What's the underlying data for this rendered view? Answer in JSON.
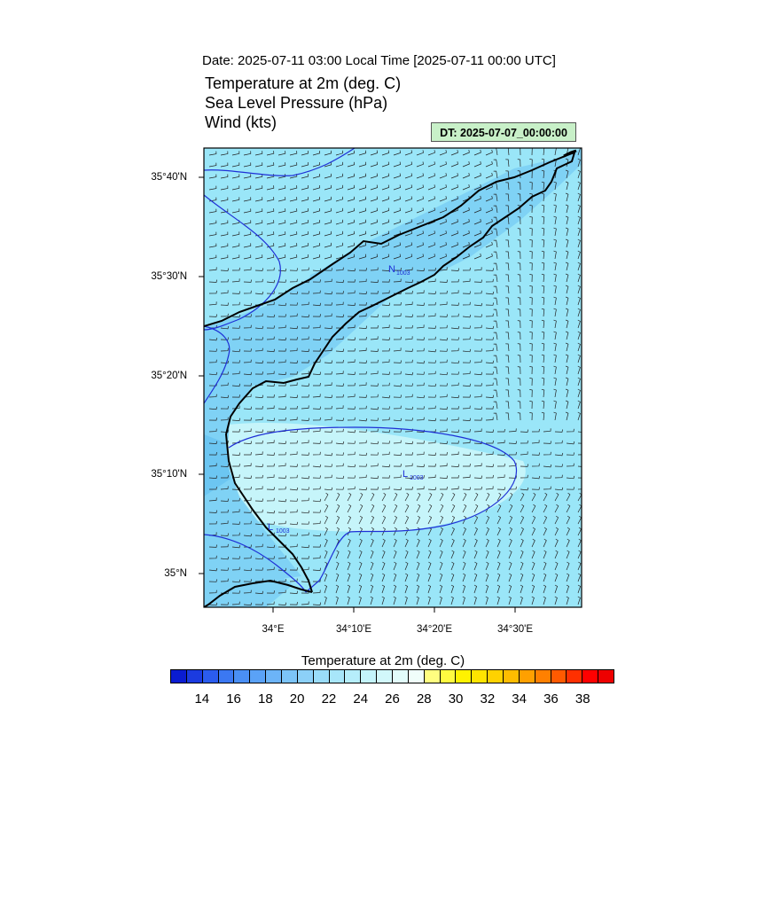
{
  "header": {
    "date_line": "Date: 2025-07-11  03:00 Local Time [2025-07-11  00:00 UTC]",
    "fields": [
      "Temperature at 2m   (deg. C)",
      "Sea Level Pressure   (hPa)",
      "Wind   (kts)"
    ],
    "dt_badge": "DT: 2025-07-07_00:00:00"
  },
  "map": {
    "lat_labels": [
      "35°40'N",
      "35°30'N",
      "35°20'N",
      "35°10'N",
      "35°N"
    ],
    "lon_labels": [
      "34°E",
      "34°10'E",
      "34°20'E",
      "34°30'E"
    ],
    "pressure_labels": [
      "1003",
      "1003",
      "1003"
    ],
    "low_markers": [
      "N",
      "L",
      "L"
    ],
    "colors": {
      "land_light": "#bff3fb",
      "sea": "#9ae6f8",
      "warm_sea": "#c6f5fa",
      "cool": "#7fd2f5",
      "coolest": "#6cc6f2",
      "isobar": "#1e2fd6",
      "coast": "#000000"
    }
  },
  "colorbar": {
    "title": "Temperature at 2m  (deg. C)",
    "tick_labels": [
      "14",
      "16",
      "18",
      "20",
      "22",
      "24",
      "26",
      "28",
      "30",
      "32",
      "34",
      "36",
      "38"
    ],
    "colors": [
      "#0a1cd1",
      "#1b3be0",
      "#2b5cee",
      "#3b78f2",
      "#4a8ff5",
      "#5aa2f7",
      "#6cb4f8",
      "#7cc4f8",
      "#8cd0f8",
      "#9adcf9",
      "#a8e6fa",
      "#b6eefb",
      "#c4f4fb",
      "#d2f8fb",
      "#e2fcfb",
      "#f0fefa",
      "#fffe80",
      "#fffa40",
      "#fff200",
      "#ffe400",
      "#ffd200",
      "#ffbc00",
      "#ffa000",
      "#ff8000",
      "#ff5a00",
      "#ff3000",
      "#ff0000",
      "#ee0000"
    ]
  }
}
